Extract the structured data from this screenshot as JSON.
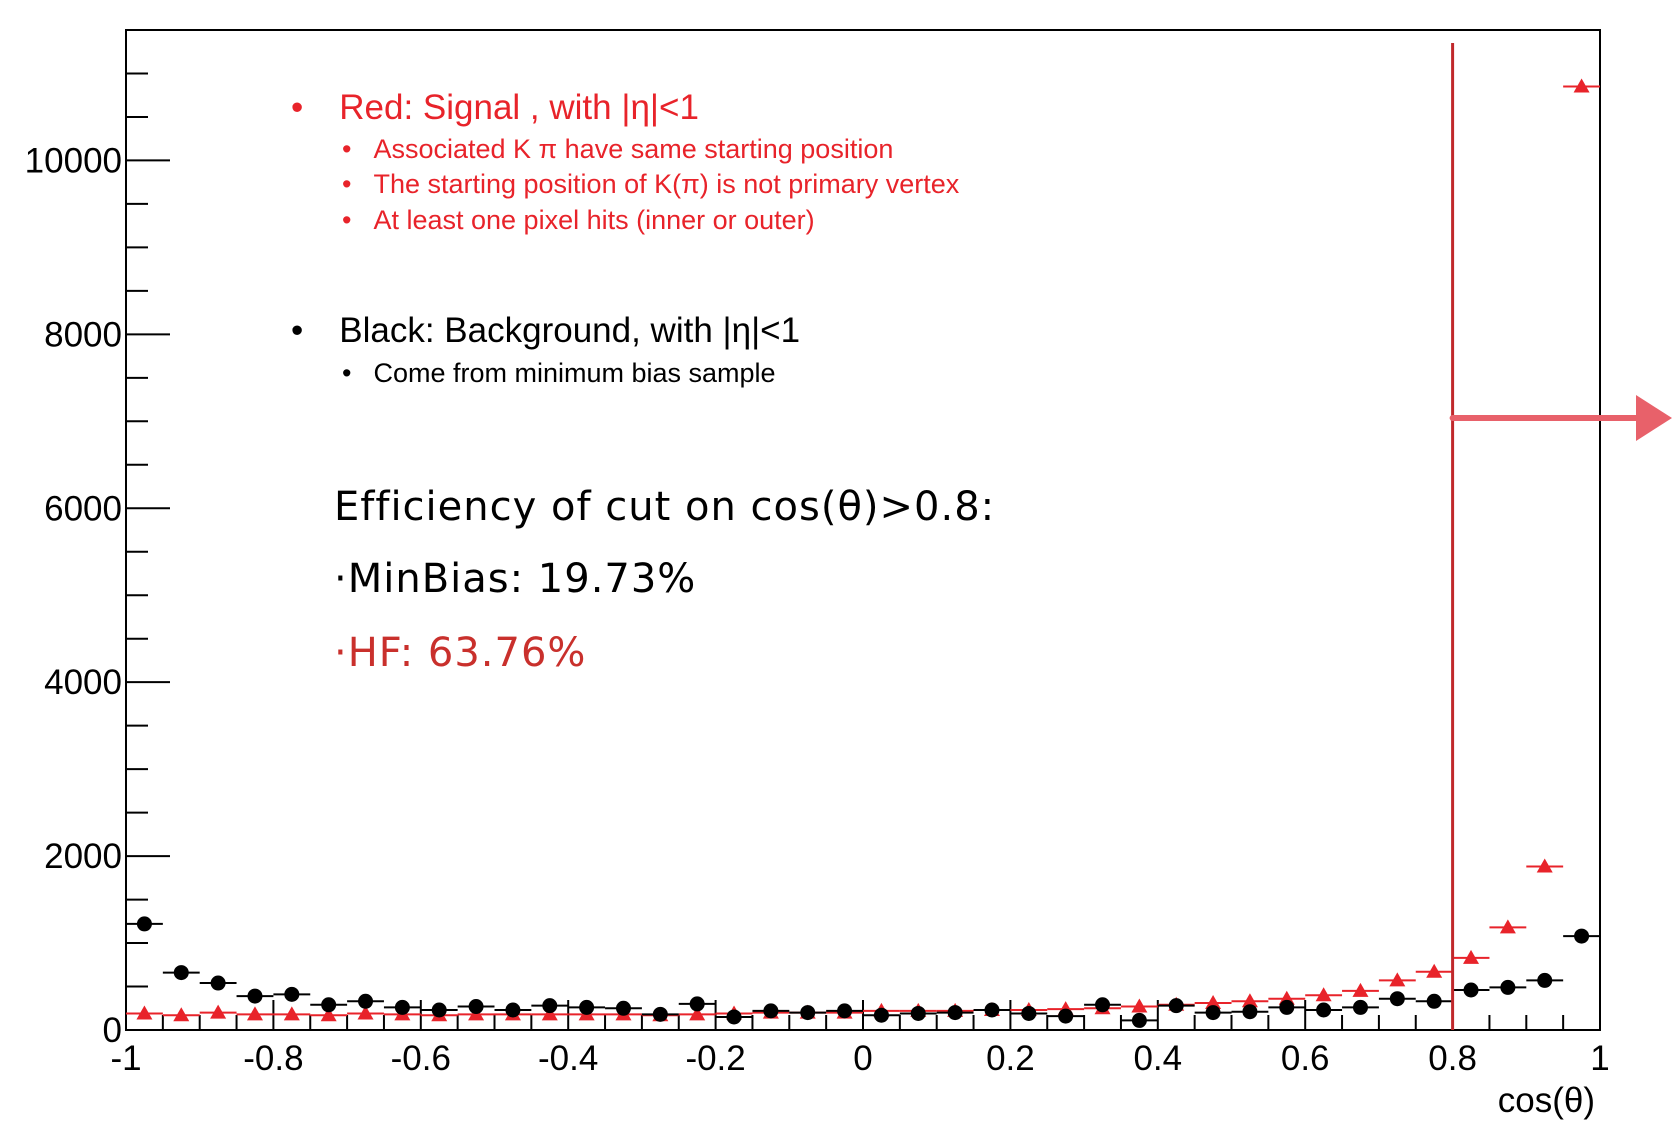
{
  "chart_data": {
    "type": "scatter",
    "xlabel": "cos(θ)",
    "ylabel": "",
    "xlim": [
      -1,
      1
    ],
    "ylim": [
      0,
      11500
    ],
    "bin_width": 0.05,
    "x_ticks": [
      "-1",
      "-0.8",
      "-0.6",
      "-0.4",
      "-0.2",
      "0",
      "0.2",
      "0.4",
      "0.6",
      "0.8",
      "1"
    ],
    "y_ticks": [
      "0",
      "2000",
      "4000",
      "6000",
      "8000",
      "10000"
    ],
    "x": [
      -0.975,
      -0.925,
      -0.875,
      -0.825,
      -0.775,
      -0.725,
      -0.675,
      -0.625,
      -0.575,
      -0.525,
      -0.475,
      -0.425,
      -0.375,
      -0.325,
      -0.275,
      -0.225,
      -0.175,
      -0.125,
      -0.075,
      -0.025,
      0.025,
      0.075,
      0.125,
      0.175,
      0.225,
      0.275,
      0.325,
      0.375,
      0.425,
      0.475,
      0.525,
      0.575,
      0.625,
      0.675,
      0.725,
      0.775,
      0.825,
      0.875,
      0.925,
      0.975
    ],
    "series": [
      {
        "name": "Red: Signal , with |η|<1",
        "color": "#e8232a",
        "marker": "triangle",
        "values": [
          190,
          170,
          200,
          180,
          180,
          170,
          190,
          180,
          170,
          180,
          180,
          180,
          180,
          180,
          170,
          180,
          190,
          200,
          200,
          200,
          220,
          220,
          220,
          230,
          230,
          240,
          250,
          270,
          290,
          310,
          330,
          360,
          400,
          450,
          570,
          670,
          830,
          1180,
          1880,
          10850
        ]
      },
      {
        "name": "Black: Background, with |η|<1",
        "color": "#000000",
        "marker": "circle",
        "values": [
          1220,
          660,
          540,
          390,
          410,
          290,
          330,
          260,
          230,
          270,
          230,
          280,
          260,
          250,
          180,
          300,
          150,
          220,
          200,
          220,
          170,
          190,
          200,
          230,
          190,
          160,
          290,
          110,
          280,
          200,
          210,
          260,
          230,
          260,
          360,
          330,
          460,
          490,
          570,
          1080
        ]
      }
    ],
    "cut": {
      "value": 0.8
    },
    "grid": false
  },
  "legend": {
    "red_title": "Red: Signal , with |η|<1",
    "red_items": [
      "Associated K π have same starting position",
      "The starting  position of K(π) is not primary vertex",
      "At least one pixel hits (inner or outer)"
    ],
    "black_title": "Black: Background, with |η|<1",
    "black_items": [
      "Come from minimum bias sample"
    ]
  },
  "annotation": {
    "line1": "Efficiency of cut on cos(θ)>0.8:",
    "line2": "·MinBias: 19.73%",
    "line3": "·HF: 63.76%"
  },
  "colors": {
    "signal": "#e8232a",
    "background": "#000000",
    "cut_line": "#c0282b",
    "arrow": "#e8616a",
    "annotation_red": "#c9302c"
  }
}
